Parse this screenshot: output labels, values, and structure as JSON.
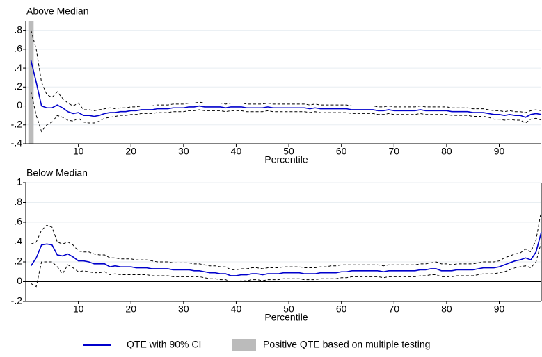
{
  "legend": {
    "line": "QTE with 90% CI",
    "shade": "Positive QTE based on multiple testing"
  },
  "chart_data": [
    {
      "type": "line",
      "title": "Above Median",
      "x_label": "Percentile",
      "x": [
        1,
        2,
        3,
        4,
        5,
        6,
        7,
        8,
        9,
        10,
        11,
        12,
        13,
        14,
        15,
        16,
        17,
        18,
        19,
        20,
        21,
        22,
        23,
        24,
        25,
        26,
        27,
        28,
        29,
        30,
        31,
        32,
        33,
        34,
        35,
        36,
        37,
        38,
        39,
        40,
        41,
        42,
        43,
        44,
        45,
        46,
        47,
        48,
        49,
        50,
        51,
        52,
        53,
        54,
        55,
        56,
        57,
        58,
        59,
        60,
        61,
        62,
        63,
        64,
        65,
        66,
        67,
        68,
        69,
        70,
        71,
        72,
        73,
        74,
        75,
        76,
        77,
        78,
        79,
        80,
        81,
        82,
        83,
        84,
        85,
        86,
        87,
        88,
        89,
        90,
        91,
        92,
        93,
        94,
        95,
        96,
        97,
        98
      ],
      "xlim": [
        0,
        98
      ],
      "xticks": [
        10,
        20,
        30,
        40,
        50,
        60,
        70,
        80,
        90
      ],
      "ylim": [
        -0.4,
        0.9
      ],
      "yticks": [
        {
          "value": -0.4,
          "label": "-.4"
        },
        {
          "value": -0.2,
          "label": "-.2"
        },
        0,
        {
          "value": 0.2,
          "label": ".2"
        },
        {
          "value": 0.4,
          "label": ".4"
        },
        {
          "value": 0.6,
          "label": ".6"
        },
        {
          "value": 0.8,
          "label": ".8"
        }
      ],
      "grid": true,
      "shade": {
        "range": [
          0.5,
          1.5
        ],
        "color": "#bbbbbb"
      },
      "series": [
        {
          "color": "#0000cc",
          "ci_color": "#000000",
          "values": [
            0.48,
            0.25,
            0,
            -0.02,
            -0.02,
            0.01,
            -0.02,
            -0.06,
            -0.08,
            -0.07,
            -0.1,
            -0.1,
            -0.11,
            -0.1,
            -0.08,
            -0.07,
            -0.07,
            -0.06,
            -0.06,
            -0.05,
            -0.05,
            -0.04,
            -0.04,
            -0.04,
            -0.03,
            -0.03,
            -0.03,
            -0.02,
            -0.02,
            -0.02,
            -0.01,
            -0.01,
            0,
            -0.01,
            -0.01,
            -0.01,
            -0.01,
            -0.02,
            -0.01,
            -0.01,
            -0.01,
            -0.02,
            -0.02,
            -0.02,
            -0.02,
            -0.01,
            -0.02,
            -0.02,
            -0.02,
            -0.02,
            -0.02,
            -0.02,
            -0.02,
            -0.03,
            -0.02,
            -0.03,
            -0.03,
            -0.03,
            -0.03,
            -0.03,
            -0.03,
            -0.04,
            -0.04,
            -0.04,
            -0.04,
            -0.04,
            -0.05,
            -0.05,
            -0.04,
            -0.05,
            -0.05,
            -0.05,
            -0.05,
            -0.05,
            -0.04,
            -0.05,
            -0.05,
            -0.05,
            -0.05,
            -0.05,
            -0.06,
            -0.06,
            -0.06,
            -0.06,
            -0.07,
            -0.07,
            -0.07,
            -0.08,
            -0.09,
            -0.09,
            -0.1,
            -0.09,
            -0.1,
            -0.1,
            -0.12,
            -0.09,
            -0.08,
            -0.09
          ],
          "lower": [
            0.15,
            -0.1,
            -0.27,
            -0.2,
            -0.17,
            -0.1,
            -0.12,
            -0.15,
            -0.16,
            -0.13,
            -0.17,
            -0.18,
            -0.18,
            -0.16,
            -0.13,
            -0.12,
            -0.11,
            -0.1,
            -0.1,
            -0.09,
            -0.09,
            -0.08,
            -0.08,
            -0.08,
            -0.07,
            -0.07,
            -0.07,
            -0.06,
            -0.06,
            -0.06,
            -0.05,
            -0.05,
            -0.04,
            -0.05,
            -0.05,
            -0.05,
            -0.05,
            -0.06,
            -0.05,
            -0.05,
            -0.05,
            -0.06,
            -0.06,
            -0.06,
            -0.06,
            -0.05,
            -0.06,
            -0.06,
            -0.06,
            -0.06,
            -0.06,
            -0.06,
            -0.06,
            -0.07,
            -0.06,
            -0.07,
            -0.07,
            -0.07,
            -0.07,
            -0.07,
            -0.07,
            -0.08,
            -0.08,
            -0.08,
            -0.08,
            -0.08,
            -0.09,
            -0.09,
            -0.08,
            -0.09,
            -0.09,
            -0.09,
            -0.09,
            -0.09,
            -0.08,
            -0.09,
            -0.09,
            -0.09,
            -0.09,
            -0.09,
            -0.1,
            -0.1,
            -0.1,
            -0.1,
            -0.11,
            -0.11,
            -0.11,
            -0.12,
            -0.14,
            -0.14,
            -0.15,
            -0.14,
            -0.15,
            -0.15,
            -0.18,
            -0.14,
            -0.13,
            -0.15
          ],
          "upper": [
            0.8,
            0.6,
            0.25,
            0.12,
            0.09,
            0.15,
            0.08,
            0.03,
            0,
            0.03,
            -0.04,
            -0.04,
            -0.05,
            -0.04,
            -0.03,
            -0.02,
            -0.03,
            -0.02,
            -0.02,
            -0.01,
            -0.01,
            0,
            0,
            0,
            0.01,
            0.01,
            0.01,
            0.02,
            0.02,
            0.02,
            0.03,
            0.03,
            0.04,
            0.03,
            0.03,
            0.03,
            0.03,
            0.02,
            0.03,
            0.03,
            0.03,
            0.02,
            0.02,
            0.02,
            0.02,
            0.03,
            0.02,
            0.02,
            0.02,
            0.02,
            0.02,
            0.02,
            0.02,
            0.01,
            0.02,
            0.01,
            0.01,
            0.01,
            0.01,
            0.01,
            0.01,
            0,
            0,
            0,
            0,
            0,
            -0.01,
            -0.01,
            0,
            -0.01,
            -0.01,
            -0.01,
            -0.01,
            -0.01,
            0,
            -0.01,
            -0.01,
            -0.01,
            -0.01,
            -0.01,
            -0.02,
            -0.02,
            -0.02,
            -0.02,
            -0.03,
            -0.03,
            -0.03,
            -0.04,
            -0.05,
            -0.05,
            -0.06,
            -0.05,
            -0.06,
            -0.06,
            -0.07,
            -0.05,
            -0.04,
            -0.05
          ]
        }
      ]
    },
    {
      "type": "line",
      "title": "Below Median",
      "x_label": "Percentile",
      "x": [
        1,
        2,
        3,
        4,
        5,
        6,
        7,
        8,
        9,
        10,
        11,
        12,
        13,
        14,
        15,
        16,
        17,
        18,
        19,
        20,
        21,
        22,
        23,
        24,
        25,
        26,
        27,
        28,
        29,
        30,
        31,
        32,
        33,
        34,
        35,
        36,
        37,
        38,
        39,
        40,
        41,
        42,
        43,
        44,
        45,
        46,
        47,
        48,
        49,
        50,
        51,
        52,
        53,
        54,
        55,
        56,
        57,
        58,
        59,
        60,
        61,
        62,
        63,
        64,
        65,
        66,
        67,
        68,
        69,
        70,
        71,
        72,
        73,
        74,
        75,
        76,
        77,
        78,
        79,
        80,
        81,
        82,
        83,
        84,
        85,
        86,
        87,
        88,
        89,
        90,
        91,
        92,
        93,
        94,
        95,
        96,
        97,
        98
      ],
      "xlim": [
        0,
        98
      ],
      "xticks": [
        10,
        20,
        30,
        40,
        50,
        60,
        70,
        80,
        90
      ],
      "ylim": [
        -0.2,
        1
      ],
      "yticks": [
        {
          "value": -0.2,
          "label": "-.2"
        },
        0,
        {
          "value": 0.2,
          "label": ".2"
        },
        {
          "value": 0.4,
          "label": ".4"
        },
        {
          "value": 0.6,
          "label": ".6"
        },
        {
          "value": 0.8,
          "label": ".8"
        },
        1
      ],
      "grid": true,
      "series": [
        {
          "color": "#0000cc",
          "ci_color": "#000000",
          "values": [
            0.16,
            0.24,
            0.37,
            0.38,
            0.37,
            0.27,
            0.26,
            0.28,
            0.25,
            0.21,
            0.21,
            0.2,
            0.18,
            0.18,
            0.18,
            0.15,
            0.16,
            0.15,
            0.15,
            0.15,
            0.14,
            0.14,
            0.14,
            0.13,
            0.13,
            0.13,
            0.13,
            0.12,
            0.12,
            0.12,
            0.12,
            0.11,
            0.11,
            0.1,
            0.09,
            0.09,
            0.08,
            0.08,
            0.06,
            0.06,
            0.07,
            0.07,
            0.08,
            0.08,
            0.07,
            0.08,
            0.08,
            0.08,
            0.09,
            0.09,
            0.09,
            0.09,
            0.08,
            0.08,
            0.08,
            0.09,
            0.09,
            0.09,
            0.09,
            0.1,
            0.1,
            0.11,
            0.11,
            0.11,
            0.11,
            0.11,
            0.11,
            0.1,
            0.11,
            0.11,
            0.11,
            0.11,
            0.11,
            0.11,
            0.12,
            0.12,
            0.13,
            0.13,
            0.11,
            0.11,
            0.11,
            0.12,
            0.12,
            0.12,
            0.12,
            0.13,
            0.14,
            0.14,
            0.14,
            0.15,
            0.17,
            0.19,
            0.21,
            0.22,
            0.24,
            0.22,
            0.3,
            0.5
          ],
          "lower": [
            -0.02,
            -0.05,
            0.2,
            0.2,
            0.2,
            0.15,
            0.08,
            0.17,
            0.14,
            0.1,
            0.11,
            0.1,
            0.09,
            0.09,
            0.1,
            0.07,
            0.08,
            0.07,
            0.07,
            0.07,
            0.07,
            0.07,
            0.07,
            0.06,
            0.06,
            0.06,
            0.06,
            0.05,
            0.05,
            0.05,
            0.05,
            0.05,
            0.05,
            0.04,
            0.03,
            0.03,
            0.02,
            0.02,
            0,
            0,
            0.01,
            0.01,
            0.02,
            0.02,
            0.01,
            0.02,
            0.02,
            0.02,
            0.03,
            0.03,
            0.03,
            0.03,
            0.02,
            0.02,
            0.02,
            0.03,
            0.03,
            0.03,
            0.03,
            0.04,
            0.04,
            0.05,
            0.05,
            0.05,
            0.05,
            0.05,
            0.05,
            0.04,
            0.05,
            0.05,
            0.05,
            0.05,
            0.05,
            0.05,
            0.06,
            0.06,
            0.07,
            0.07,
            0.05,
            0.05,
            0.05,
            0.06,
            0.06,
            0.06,
            0.06,
            0.07,
            0.08,
            0.08,
            0.08,
            0.09,
            0.1,
            0.12,
            0.14,
            0.15,
            0.16,
            0.14,
            0.2,
            0.4
          ],
          "upper": [
            0.38,
            0.4,
            0.52,
            0.57,
            0.55,
            0.4,
            0.38,
            0.4,
            0.37,
            0.31,
            0.3,
            0.3,
            0.28,
            0.27,
            0.27,
            0.24,
            0.24,
            0.23,
            0.23,
            0.23,
            0.22,
            0.22,
            0.22,
            0.21,
            0.2,
            0.2,
            0.2,
            0.19,
            0.19,
            0.19,
            0.19,
            0.18,
            0.18,
            0.17,
            0.16,
            0.16,
            0.15,
            0.15,
            0.12,
            0.12,
            0.13,
            0.13,
            0.14,
            0.14,
            0.13,
            0.14,
            0.14,
            0.14,
            0.15,
            0.15,
            0.15,
            0.15,
            0.14,
            0.14,
            0.14,
            0.15,
            0.15,
            0.16,
            0.16,
            0.17,
            0.17,
            0.17,
            0.17,
            0.17,
            0.17,
            0.17,
            0.17,
            0.16,
            0.17,
            0.17,
            0.17,
            0.17,
            0.17,
            0.17,
            0.18,
            0.18,
            0.19,
            0.2,
            0.18,
            0.18,
            0.17,
            0.18,
            0.18,
            0.18,
            0.18,
            0.19,
            0.2,
            0.2,
            0.2,
            0.21,
            0.24,
            0.26,
            0.28,
            0.29,
            0.33,
            0.3,
            0.42,
            0.72
          ]
        }
      ]
    }
  ]
}
